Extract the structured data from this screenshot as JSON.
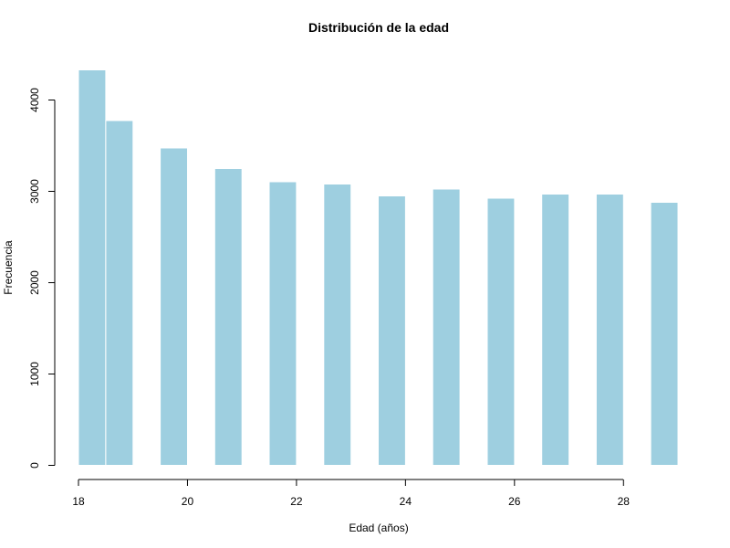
{
  "chart_data": {
    "type": "bar",
    "title": "Distribución de la edad",
    "xlabel": "Edad (años)",
    "ylabel": "Frecuencia",
    "bins": [
      {
        "x0": 18.0,
        "x1": 18.5,
        "value": 4330
      },
      {
        "x0": 18.5,
        "x1": 19.0,
        "value": 3775
      },
      {
        "x0": 19.5,
        "x1": 20.0,
        "value": 3475
      },
      {
        "x0": 20.5,
        "x1": 21.0,
        "value": 3250
      },
      {
        "x0": 21.5,
        "x1": 22.0,
        "value": 3105
      },
      {
        "x0": 22.5,
        "x1": 23.0,
        "value": 3080
      },
      {
        "x0": 23.5,
        "x1": 24.0,
        "value": 2950
      },
      {
        "x0": 24.5,
        "x1": 25.0,
        "value": 3025
      },
      {
        "x0": 25.5,
        "x1": 26.0,
        "value": 2925
      },
      {
        "x0": 26.5,
        "x1": 27.0,
        "value": 2970
      },
      {
        "x0": 27.5,
        "x1": 28.0,
        "value": 2970
      },
      {
        "x0": 28.5,
        "x1": 29.0,
        "value": 2880
      }
    ],
    "xlim": [
      18,
      29
    ],
    "ylim": [
      0,
      4330
    ],
    "xticks": [
      18,
      20,
      22,
      24,
      26,
      28
    ],
    "yticks": [
      0,
      1000,
      2000,
      3000,
      4000
    ],
    "grid": false,
    "colors": {
      "bar": "#9ecfe0",
      "bar_border": "#ffffff"
    }
  }
}
